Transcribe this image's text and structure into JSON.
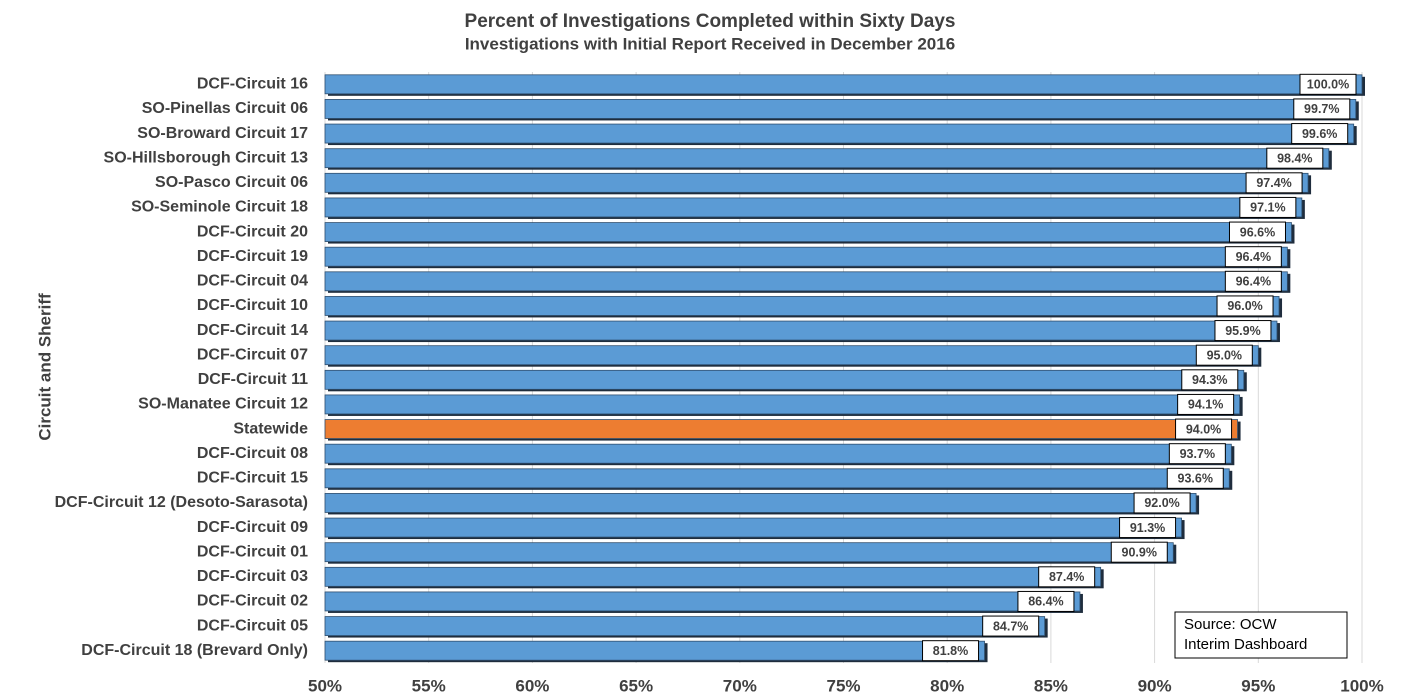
{
  "chart_data": {
    "type": "barh",
    "title": "Percent of Investigations Completed within Sixty Days",
    "subtitle": "Investigations with Initial Report Received in December 2016",
    "y_label": "Circuit and Sheriff",
    "categories": [
      "DCF-Circuit 16",
      "SO-Pinellas Circuit 06",
      "SO-Broward Circuit 17",
      "SO-Hillsborough Circuit 13",
      "SO-Pasco Circuit 06",
      "SO-Seminole Circuit 18",
      "DCF-Circuit 20",
      "DCF-Circuit 19",
      "DCF-Circuit 04",
      "DCF-Circuit 10",
      "DCF-Circuit 14",
      "DCF-Circuit 07",
      "DCF-Circuit 11",
      "SO-Manatee Circuit 12",
      "Statewide",
      "DCF-Circuit 08",
      "DCF-Circuit 15",
      "DCF-Circuit 12 (Desoto-Sarasota)",
      "DCF-Circuit 09",
      "DCF-Circuit 01",
      "DCF-Circuit 03",
      "DCF-Circuit 02",
      "DCF-Circuit 05",
      "DCF-Circuit 18 (Brevard Only)"
    ],
    "values": [
      100.0,
      99.7,
      99.6,
      98.4,
      97.4,
      97.1,
      96.6,
      96.4,
      96.4,
      96.0,
      95.9,
      95.0,
      94.3,
      94.1,
      94.0,
      93.7,
      93.6,
      92.0,
      91.3,
      90.9,
      87.4,
      86.4,
      84.7,
      81.8
    ],
    "value_labels": [
      "100.0%",
      "99.7%",
      "99.6%",
      "98.4%",
      "97.4%",
      "97.1%",
      "96.6%",
      "96.4%",
      "96.4%",
      "96.0%",
      "95.9%",
      "95.0%",
      "94.3%",
      "94.1%",
      "94.0%",
      "93.7%",
      "93.6%",
      "92.0%",
      "91.3%",
      "90.9%",
      "87.4%",
      "86.4%",
      "84.7%",
      "81.8%"
    ],
    "colors": [
      "#5b9bd5",
      "#5b9bd5",
      "#5b9bd5",
      "#5b9bd5",
      "#5b9bd5",
      "#5b9bd5",
      "#5b9bd5",
      "#5b9bd5",
      "#5b9bd5",
      "#5b9bd5",
      "#5b9bd5",
      "#5b9bd5",
      "#5b9bd5",
      "#5b9bd5",
      "#ed7d31",
      "#5b9bd5",
      "#5b9bd5",
      "#5b9bd5",
      "#5b9bd5",
      "#5b9bd5",
      "#5b9bd5",
      "#5b9bd5",
      "#5b9bd5",
      "#5b9bd5"
    ],
    "xlim": [
      50,
      100
    ],
    "xticks": [
      {
        "value": 50,
        "label": "50%"
      },
      {
        "value": 55,
        "label": "55%"
      },
      {
        "value": 60,
        "label": "60%"
      },
      {
        "value": 65,
        "label": "65%"
      },
      {
        "value": 70,
        "label": "70%"
      },
      {
        "value": 75,
        "label": "75%"
      },
      {
        "value": 80,
        "label": "80%"
      },
      {
        "value": 85,
        "label": "85%"
      },
      {
        "value": 90,
        "label": "90%"
      },
      {
        "value": 95,
        "label": "95%"
      },
      {
        "value": 100,
        "label": "100%"
      }
    ],
    "grid": true,
    "annotation": [
      "Source: OCW",
      "Interim Dashboard"
    ]
  }
}
